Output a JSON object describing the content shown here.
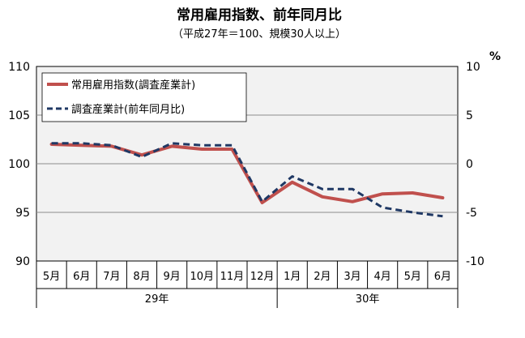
{
  "chart_data": {
    "type": "line",
    "title": "常用雇用指数、前年同月比",
    "subtitle": "（平成27年＝100、規模30人以上）",
    "categories": [
      "5月",
      "6月",
      "7月",
      "8月",
      "9月",
      "10月",
      "11月",
      "12月",
      "1月",
      "2月",
      "3月",
      "4月",
      "5月",
      "6月"
    ],
    "groups": [
      {
        "label": "29年",
        "span": [
          0,
          7
        ]
      },
      {
        "label": "30年",
        "span": [
          8,
          13
        ]
      }
    ],
    "y_left": {
      "range": [
        90,
        110
      ],
      "ticks": [
        90,
        95,
        100,
        105,
        110
      ]
    },
    "y_right": {
      "range": [
        -10,
        10
      ],
      "ticks": [
        "-10",
        "-5",
        "0",
        "5",
        "10"
      ],
      "unit": "%"
    },
    "grid": true,
    "legend": "top-left",
    "series": [
      {
        "name": "常用雇用指数(調査産業計)",
        "axis": "left",
        "color": "#c0504d",
        "style": "solid",
        "values": [
          102.0,
          101.9,
          101.8,
          100.9,
          101.8,
          101.5,
          101.5,
          96.0,
          98.1,
          96.6,
          96.1,
          96.9,
          97.0,
          96.5
        ]
      },
      {
        "name": "調査産業計(前年同月比)",
        "axis": "right",
        "color": "#1f3864",
        "style": "dashed",
        "values": [
          2.1,
          2.1,
          1.9,
          0.7,
          2.1,
          1.9,
          1.9,
          -3.9,
          -1.3,
          -2.6,
          -2.6,
          -4.5,
          -5.0,
          -5.4
        ]
      }
    ]
  }
}
